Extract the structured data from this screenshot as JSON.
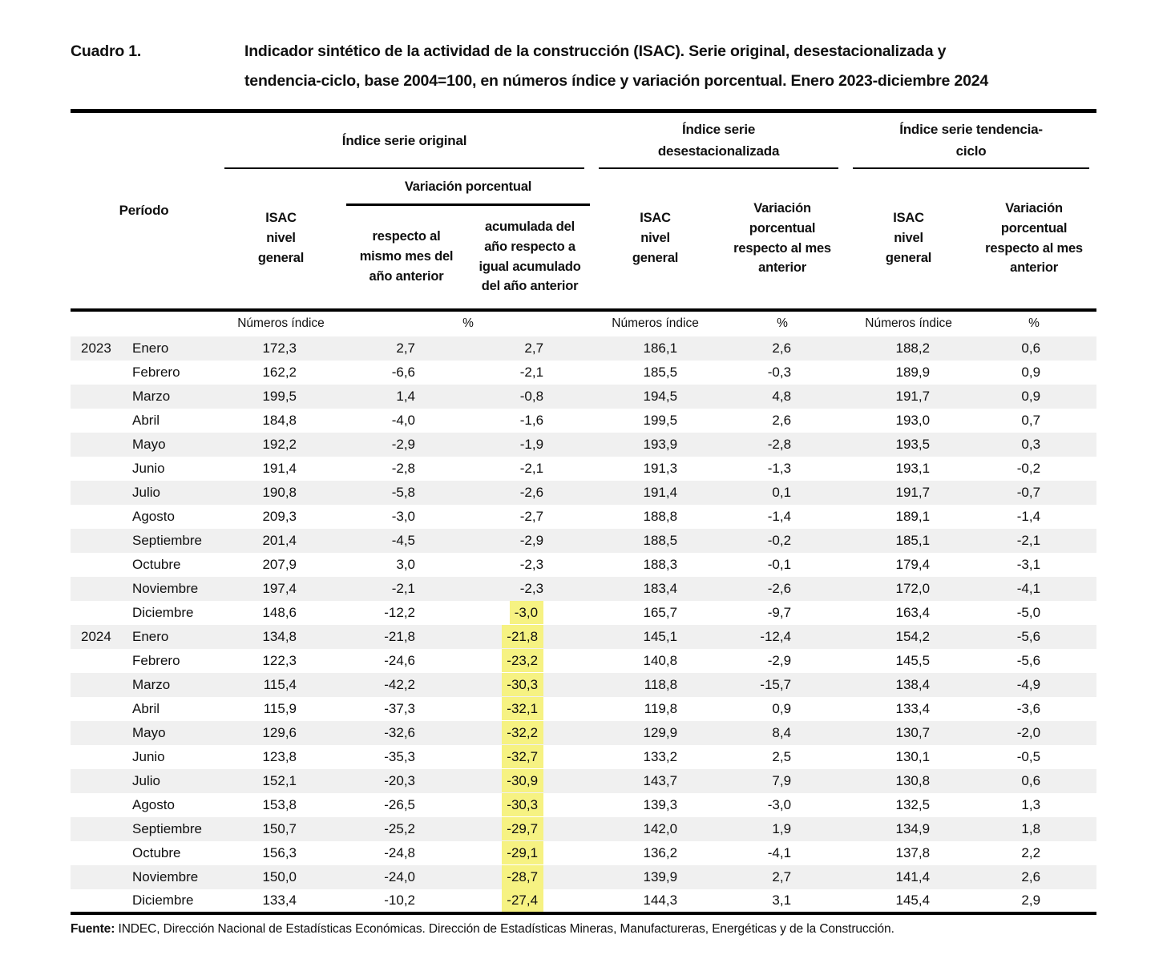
{
  "title": {
    "label": "Cuadro 1.",
    "line1": "Indicador sintético de la actividad de la construcción (ISAC). Serie original, desestacionalizada y",
    "line2": "tendencia-ciclo, base 2004=100, en números índice y variación porcentual. Enero 2023-diciembre 2024"
  },
  "header": {
    "periodo": "Período",
    "groups": [
      {
        "label": "Índice serie original"
      },
      {
        "label": "Índice serie desestacionalizada"
      },
      {
        "label": "Índice serie tendencia-ciclo"
      }
    ],
    "isac_nivel_general": "ISAC nivel general",
    "variacion_porcentual": "Variación porcentual",
    "respecto_mismo_mes": "respecto al mismo mes del año anterior",
    "acumulada": "acumulada del año respecto a igual acumulado del año anterior",
    "variacion_mes_anterior": "Variación porcentual respecto al mes anterior",
    "units": {
      "numeros_indice": "Números índice",
      "pct": "%"
    }
  },
  "table": {
    "rows": [
      {
        "y": "2023",
        "m": "Enero",
        "v": [
          "172,3",
          "2,7",
          "2,7",
          "186,1",
          "2,6",
          "188,2",
          "0,6"
        ],
        "hl": false
      },
      {
        "y": "",
        "m": "Febrero",
        "v": [
          "162,2",
          "-6,6",
          "-2,1",
          "185,5",
          "-0,3",
          "189,9",
          "0,9"
        ],
        "hl": false
      },
      {
        "y": "",
        "m": "Marzo",
        "v": [
          "199,5",
          "1,4",
          "-0,8",
          "194,5",
          "4,8",
          "191,7",
          "0,9"
        ],
        "hl": false
      },
      {
        "y": "",
        "m": "Abril",
        "v": [
          "184,8",
          "-4,0",
          "-1,6",
          "199,5",
          "2,6",
          "193,0",
          "0,7"
        ],
        "hl": false
      },
      {
        "y": "",
        "m": "Mayo",
        "v": [
          "192,2",
          "-2,9",
          "-1,9",
          "193,9",
          "-2,8",
          "193,5",
          "0,3"
        ],
        "hl": false
      },
      {
        "y": "",
        "m": "Junio",
        "v": [
          "191,4",
          "-2,8",
          "-2,1",
          "191,3",
          "-1,3",
          "193,1",
          "-0,2"
        ],
        "hl": false
      },
      {
        "y": "",
        "m": "Julio",
        "v": [
          "190,8",
          "-5,8",
          "-2,6",
          "191,4",
          "0,1",
          "191,7",
          "-0,7"
        ],
        "hl": false
      },
      {
        "y": "",
        "m": "Agosto",
        "v": [
          "209,3",
          "-3,0",
          "-2,7",
          "188,8",
          "-1,4",
          "189,1",
          "-1,4"
        ],
        "hl": false
      },
      {
        "y": "",
        "m": "Septiembre",
        "v": [
          "201,4",
          "-4,5",
          "-2,9",
          "188,5",
          "-0,2",
          "185,1",
          "-2,1"
        ],
        "hl": false
      },
      {
        "y": "",
        "m": "Octubre",
        "v": [
          "207,9",
          "3,0",
          "-2,3",
          "188,3",
          "-0,1",
          "179,4",
          "-3,1"
        ],
        "hl": false
      },
      {
        "y": "",
        "m": "Noviembre",
        "v": [
          "197,4",
          "-2,1",
          "-2,3",
          "183,4",
          "-2,6",
          "172,0",
          "-4,1"
        ],
        "hl": false
      },
      {
        "y": "",
        "m": "Diciembre",
        "v": [
          "148,6",
          "-12,2",
          "-3,0",
          "165,7",
          "-9,7",
          "163,4",
          "-5,0"
        ],
        "hl": true
      },
      {
        "y": "2024",
        "m": "Enero",
        "v": [
          "134,8",
          "-21,8",
          "-21,8",
          "145,1",
          "-12,4",
          "154,2",
          "-5,6"
        ],
        "hl": true
      },
      {
        "y": "",
        "m": "Febrero",
        "v": [
          "122,3",
          "-24,6",
          "-23,2",
          "140,8",
          "-2,9",
          "145,5",
          "-5,6"
        ],
        "hl": true
      },
      {
        "y": "",
        "m": "Marzo",
        "v": [
          "115,4",
          "-42,2",
          "-30,3",
          "118,8",
          "-15,7",
          "138,4",
          "-4,9"
        ],
        "hl": true
      },
      {
        "y": "",
        "m": "Abril",
        "v": [
          "115,9",
          "-37,3",
          "-32,1",
          "119,8",
          "0,9",
          "133,4",
          "-3,6"
        ],
        "hl": true
      },
      {
        "y": "",
        "m": "Mayo",
        "v": [
          "129,6",
          "-32,6",
          "-32,2",
          "129,9",
          "8,4",
          "130,7",
          "-2,0"
        ],
        "hl": true
      },
      {
        "y": "",
        "m": "Junio",
        "v": [
          "123,8",
          "-35,3",
          "-32,7",
          "133,2",
          "2,5",
          "130,1",
          "-0,5"
        ],
        "hl": true
      },
      {
        "y": "",
        "m": "Julio",
        "v": [
          "152,1",
          "-20,3",
          "-30,9",
          "143,7",
          "7,9",
          "130,8",
          "0,6"
        ],
        "hl": true
      },
      {
        "y": "",
        "m": "Agosto",
        "v": [
          "153,8",
          "-26,5",
          "-30,3",
          "139,3",
          "-3,0",
          "132,5",
          "1,3"
        ],
        "hl": true
      },
      {
        "y": "",
        "m": "Septiembre",
        "v": [
          "150,7",
          "-25,2",
          "-29,7",
          "142,0",
          "1,9",
          "134,9",
          "1,8"
        ],
        "hl": true
      },
      {
        "y": "",
        "m": "Octubre",
        "v": [
          "156,3",
          "-24,8",
          "-29,1",
          "136,2",
          "-4,1",
          "137,8",
          "2,2"
        ],
        "hl": true
      },
      {
        "y": "",
        "m": "Noviembre",
        "v": [
          "150,0",
          "-24,0",
          "-28,7",
          "139,9",
          "2,7",
          "141,4",
          "2,6"
        ],
        "hl": true
      },
      {
        "y": "",
        "m": "Diciembre",
        "v": [
          "133,4",
          "-10,2",
          "-27,4",
          "144,3",
          "3,1",
          "145,4",
          "2,9"
        ],
        "hl": true
      }
    ]
  },
  "footer": {
    "label": "Fuente:",
    "text": "INDEC, Dirección Nacional de Estadísticas Económicas. Dirección de Estadísticas Mineras, Manufactureras, Energéticas y de la Construcción."
  },
  "colors": {
    "highlight": "#f6f282",
    "stripe": "#f0f0f0",
    "rule": "#000000"
  }
}
